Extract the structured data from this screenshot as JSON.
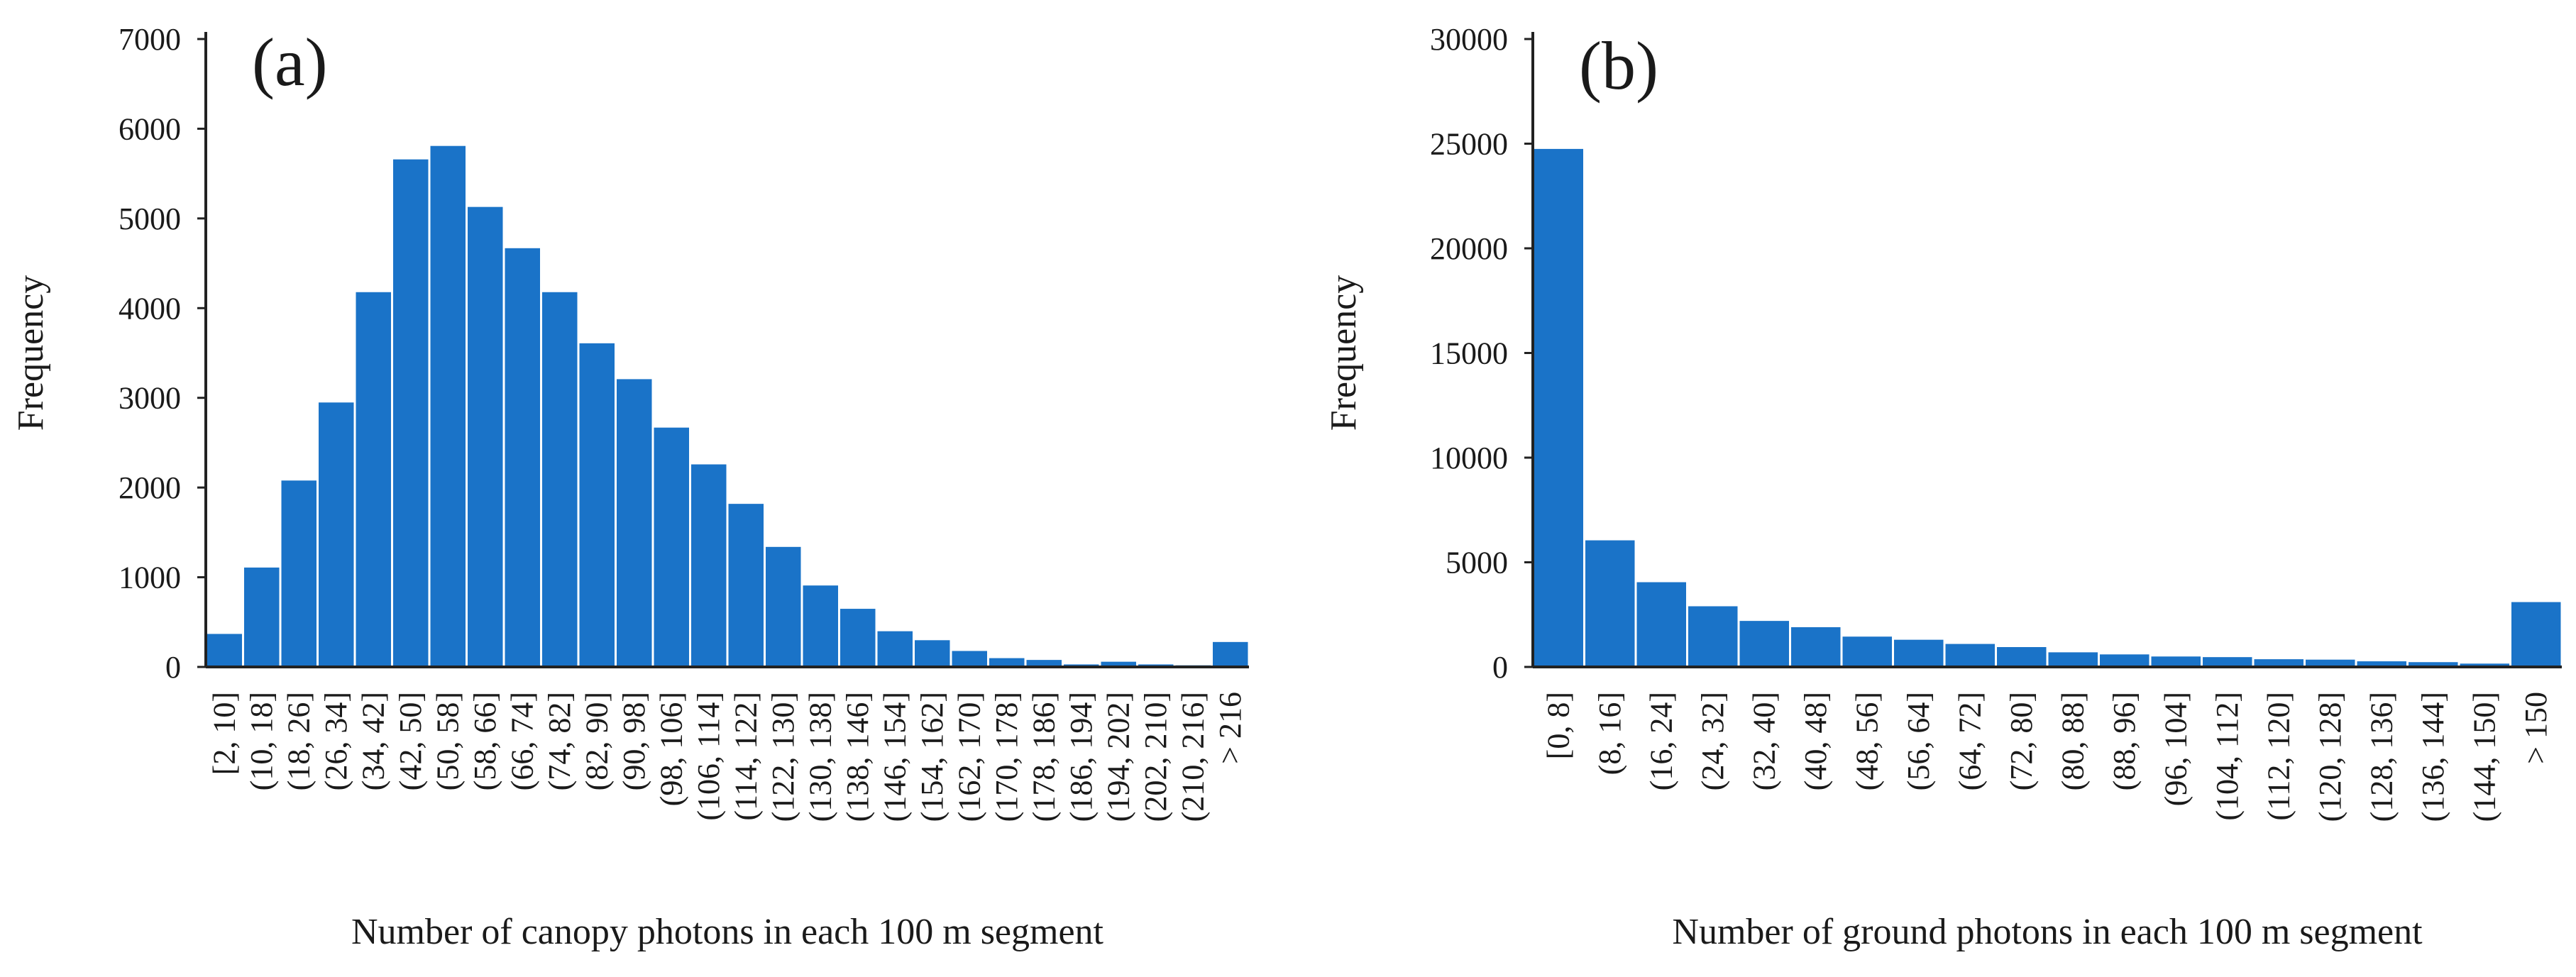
{
  "chart_data": [
    {
      "type": "bar",
      "panel_label": "(a)",
      "color": "#1a73c8",
      "ylabel": "Frequency",
      "xlabel": "Number of canopy photons in each 100 m segment",
      "ylim": [
        0,
        7000
      ],
      "yticks": [
        "0",
        "1000",
        "2000",
        "3000",
        "4000",
        "5000",
        "6000",
        "7000"
      ],
      "categories": [
        "[2, 10]",
        "(10, 18]",
        "(18, 26]",
        "(26, 34]",
        "(34, 42]",
        "(42, 50]",
        "(50, 58]",
        "(58, 66]",
        "(66, 74]",
        "(74, 82]",
        "(82, 90]",
        "(90, 98]",
        "(98, 106]",
        "(106, 114]",
        "(114, 122]",
        "(122, 130]",
        "(130, 138]",
        "(138, 146]",
        "(146, 154]",
        "(154, 162]",
        "(162, 170]",
        "(170, 178]",
        "(178, 186]",
        "(186, 194]",
        "(194, 202]",
        "(202, 210]",
        "(210, 216]",
        "> 216"
      ],
      "values": [
        380,
        1120,
        2090,
        2960,
        4190,
        5670,
        5820,
        5140,
        4680,
        4190,
        3620,
        3220,
        2680,
        2270,
        1830,
        1350,
        920,
        660,
        410,
        310,
        190,
        110,
        90,
        40,
        70,
        40,
        30,
        290
      ]
    },
    {
      "type": "bar",
      "panel_label": "(b)",
      "color": "#1a73c8",
      "ylabel": "Frequency",
      "xlabel": "Number of ground photons in each 100 m segment",
      "ylim": [
        0,
        30000
      ],
      "yticks": [
        "0",
        "5000",
        "10000",
        "15000",
        "20000",
        "25000",
        "30000"
      ],
      "categories": [
        "[0, 8]",
        "(8, 16]",
        "(16, 24]",
        "(24, 32]",
        "(32, 40]",
        "(40, 48]",
        "(48, 56]",
        "(56, 64]",
        "(64, 72]",
        "(72, 80]",
        "(80, 88]",
        "(88, 96]",
        "(96, 104]",
        "(104, 112]",
        "(112, 120]",
        "(120, 128]",
        "(128, 136]",
        "(136, 144]",
        "(144, 150]",
        "> 150"
      ],
      "values": [
        24800,
        6100,
        4100,
        2950,
        2250,
        1950,
        1500,
        1350,
        1150,
        1000,
        750,
        650,
        550,
        520,
        420,
        400,
        320,
        280,
        210,
        3150
      ]
    }
  ]
}
